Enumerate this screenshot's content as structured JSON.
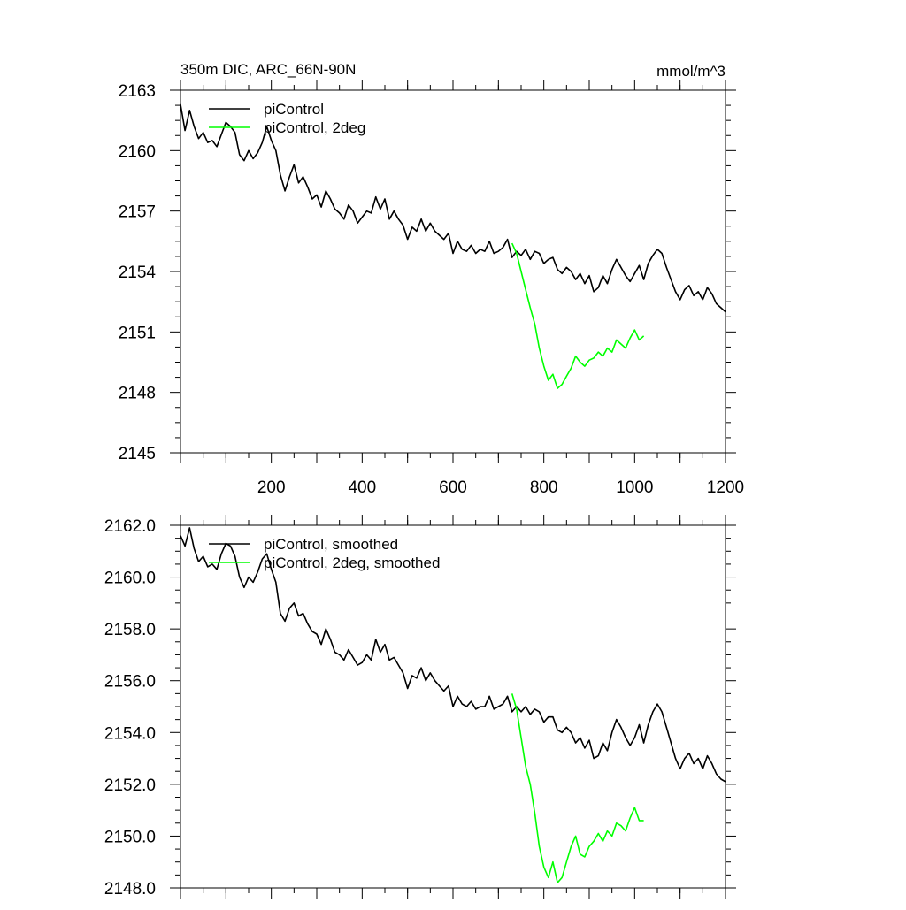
{
  "chart_data": [
    {
      "type": "line",
      "title": "350m DIC, ARC_66N-90N",
      "units": "mmol/m^3",
      "xlim": [
        0,
        1200
      ],
      "ylim": [
        2145,
        2163
      ],
      "x_ticks": [
        200,
        400,
        600,
        800,
        1000,
        1200
      ],
      "x_tick_labels": [
        "200",
        "400",
        "600",
        "800",
        "1000",
        "1200"
      ],
      "y_ticks": [
        2145,
        2148,
        2151,
        2154,
        2157,
        2160,
        2163
      ],
      "y_tick_labels": [
        "2145",
        "2148",
        "2151",
        "2154",
        "2157",
        "2160",
        "2163"
      ],
      "legend_position": "top-left",
      "series": [
        {
          "name": "piControl",
          "color": "#000000",
          "x": [
            0,
            10,
            20,
            30,
            40,
            50,
            60,
            70,
            80,
            90,
            100,
            110,
            120,
            130,
            140,
            150,
            160,
            170,
            180,
            190,
            200,
            210,
            220,
            230,
            240,
            250,
            260,
            270,
            280,
            290,
            300,
            310,
            320,
            330,
            340,
            350,
            360,
            370,
            380,
            390,
            400,
            410,
            420,
            430,
            440,
            450,
            460,
            470,
            480,
            490,
            500,
            510,
            520,
            530,
            540,
            550,
            560,
            570,
            580,
            590,
            600,
            610,
            620,
            630,
            640,
            650,
            660,
            670,
            680,
            690,
            700,
            710,
            720,
            730,
            740,
            750,
            760,
            770,
            780,
            790,
            800,
            810,
            820,
            830,
            840,
            850,
            860,
            870,
            880,
            890,
            900,
            910,
            920,
            930,
            940,
            950,
            960,
            970,
            980,
            990,
            1000,
            1010,
            1020,
            1030,
            1040,
            1050,
            1060,
            1070,
            1080,
            1090,
            1100,
            1110,
            1120,
            1130,
            1140,
            1150,
            1160,
            1170,
            1180,
            1190,
            1200
          ],
          "values": [
            2162.3,
            2161.0,
            2162.0,
            2161.2,
            2160.6,
            2160.9,
            2160.4,
            2160.5,
            2160.2,
            2160.8,
            2161.4,
            2161.2,
            2160.9,
            2159.8,
            2159.5,
            2160.0,
            2159.6,
            2159.9,
            2160.4,
            2161.2,
            2160.5,
            2160.0,
            2158.8,
            2158.0,
            2158.7,
            2159.3,
            2158.4,
            2158.7,
            2158.2,
            2157.6,
            2157.8,
            2157.2,
            2158.0,
            2157.6,
            2157.1,
            2156.9,
            2156.6,
            2157.3,
            2157.0,
            2156.4,
            2156.7,
            2157.0,
            2156.9,
            2157.7,
            2157.1,
            2157.6,
            2156.6,
            2157.0,
            2156.6,
            2156.3,
            2155.6,
            2156.2,
            2156.0,
            2156.6,
            2156.0,
            2156.4,
            2156.0,
            2155.8,
            2155.6,
            2155.9,
            2154.9,
            2155.5,
            2155.1,
            2155.0,
            2155.3,
            2154.9,
            2155.1,
            2155.0,
            2155.5,
            2154.9,
            2155.0,
            2155.2,
            2155.6,
            2154.7,
            2155.0,
            2154.8,
            2155.1,
            2154.6,
            2155.0,
            2154.9,
            2154.4,
            2154.6,
            2154.7,
            2154.1,
            2153.9,
            2154.2,
            2154.0,
            2153.6,
            2153.9,
            2153.4,
            2153.8,
            2153.0,
            2153.2,
            2153.8,
            2153.4,
            2154.1,
            2154.6,
            2154.2,
            2153.8,
            2153.5,
            2153.9,
            2154.3,
            2153.6,
            2154.4,
            2154.8,
            2155.1,
            2154.9,
            2154.2,
            2153.6,
            2153.0,
            2152.6,
            2153.1,
            2153.3,
            2152.8,
            2153.0,
            2152.6,
            2153.2,
            2152.9,
            2152.4,
            2152.2,
            2152.0
          ]
        },
        {
          "name": "piControl, 2deg",
          "color": "#00ff00",
          "x": [
            730,
            740,
            750,
            760,
            770,
            780,
            790,
            800,
            810,
            820,
            830,
            840,
            850,
            860,
            870,
            880,
            890,
            900,
            910,
            920,
            930,
            940,
            950,
            960,
            970,
            980,
            990,
            1000,
            1010,
            1020
          ],
          "values": [
            2155.4,
            2154.9,
            2154.0,
            2153.1,
            2152.2,
            2151.4,
            2150.2,
            2149.3,
            2148.6,
            2148.9,
            2148.2,
            2148.4,
            2148.8,
            2149.2,
            2149.8,
            2149.5,
            2149.3,
            2149.6,
            2149.7,
            2150.0,
            2149.8,
            2150.2,
            2150.0,
            2150.6,
            2150.4,
            2150.2,
            2150.7,
            2151.1,
            2150.6,
            2150.8
          ]
        }
      ]
    },
    {
      "type": "line",
      "title": "",
      "xlim": [
        0,
        1200
      ],
      "ylim": [
        2148,
        2162
      ],
      "y_ticks": [
        2148,
        2150,
        2152,
        2154,
        2156,
        2158,
        2160,
        2162
      ],
      "y_tick_labels": [
        "2148.0",
        "2150.0",
        "2152.0",
        "2154.0",
        "2156.0",
        "2158.0",
        "2160.0",
        "2162.0"
      ],
      "legend_position": "top-left",
      "series": [
        {
          "name": "piControl, smoothed",
          "color": "#000000",
          "x": [
            0,
            10,
            20,
            30,
            40,
            50,
            60,
            70,
            80,
            90,
            100,
            110,
            120,
            130,
            140,
            150,
            160,
            170,
            180,
            190,
            200,
            210,
            220,
            230,
            240,
            250,
            260,
            270,
            280,
            290,
            300,
            310,
            320,
            330,
            340,
            350,
            360,
            370,
            380,
            390,
            400,
            410,
            420,
            430,
            440,
            450,
            460,
            470,
            480,
            490,
            500,
            510,
            520,
            530,
            540,
            550,
            560,
            570,
            580,
            590,
            600,
            610,
            620,
            630,
            640,
            650,
            660,
            670,
            680,
            690,
            700,
            710,
            720,
            730,
            740,
            750,
            760,
            770,
            780,
            790,
            800,
            810,
            820,
            830,
            840,
            850,
            860,
            870,
            880,
            890,
            900,
            910,
            920,
            930,
            940,
            950,
            960,
            970,
            980,
            990,
            1000,
            1010,
            1020,
            1030,
            1040,
            1050,
            1060,
            1070,
            1080,
            1090,
            1100,
            1110,
            1120,
            1130,
            1140,
            1150,
            1160,
            1170,
            1180,
            1190,
            1200
          ],
          "values": [
            2161.6,
            2161.2,
            2161.9,
            2161.1,
            2160.6,
            2160.8,
            2160.4,
            2160.5,
            2160.3,
            2160.9,
            2161.3,
            2161.2,
            2160.8,
            2160.0,
            2159.6,
            2160.0,
            2159.8,
            2160.2,
            2160.7,
            2160.9,
            2160.3,
            2159.8,
            2158.6,
            2158.3,
            2158.8,
            2159.0,
            2158.5,
            2158.6,
            2158.2,
            2157.9,
            2157.8,
            2157.4,
            2158.0,
            2157.6,
            2157.1,
            2157.0,
            2156.8,
            2157.2,
            2156.9,
            2156.6,
            2156.7,
            2157.0,
            2156.8,
            2157.6,
            2157.1,
            2157.4,
            2156.8,
            2156.9,
            2156.6,
            2156.3,
            2155.7,
            2156.2,
            2156.1,
            2156.5,
            2156.0,
            2156.3,
            2156.0,
            2155.8,
            2155.6,
            2155.8,
            2155.0,
            2155.4,
            2155.1,
            2155.0,
            2155.2,
            2154.9,
            2155.0,
            2155.0,
            2155.4,
            2154.9,
            2155.0,
            2155.1,
            2155.4,
            2154.8,
            2155.0,
            2154.8,
            2155.0,
            2154.7,
            2154.9,
            2154.8,
            2154.4,
            2154.6,
            2154.6,
            2154.1,
            2154.0,
            2154.2,
            2154.0,
            2153.6,
            2153.8,
            2153.4,
            2153.7,
            2153.0,
            2153.1,
            2153.6,
            2153.3,
            2154.0,
            2154.5,
            2154.2,
            2153.8,
            2153.5,
            2153.8,
            2154.3,
            2153.6,
            2154.3,
            2154.8,
            2155.1,
            2154.8,
            2154.2,
            2153.6,
            2153.0,
            2152.6,
            2153.0,
            2153.2,
            2152.8,
            2153.0,
            2152.6,
            2153.1,
            2152.8,
            2152.4,
            2152.2,
            2152.1
          ]
        },
        {
          "name": "piControl, 2deg, smoothed",
          "color": "#00ff00",
          "x": [
            730,
            740,
            750,
            760,
            770,
            780,
            790,
            800,
            810,
            820,
            830,
            840,
            850,
            860,
            870,
            880,
            890,
            900,
            910,
            920,
            930,
            940,
            950,
            960,
            970,
            980,
            990,
            1000,
            1010,
            1020
          ],
          "values": [
            2155.5,
            2154.9,
            2153.8,
            2152.7,
            2152.0,
            2150.9,
            2149.6,
            2148.8,
            2148.4,
            2149.0,
            2148.2,
            2148.4,
            2149.0,
            2149.6,
            2150.0,
            2149.3,
            2149.2,
            2149.6,
            2149.8,
            2150.1,
            2149.8,
            2150.2,
            2150.0,
            2150.5,
            2150.4,
            2150.2,
            2150.7,
            2151.1,
            2150.6,
            2150.6
          ]
        }
      ]
    }
  ]
}
